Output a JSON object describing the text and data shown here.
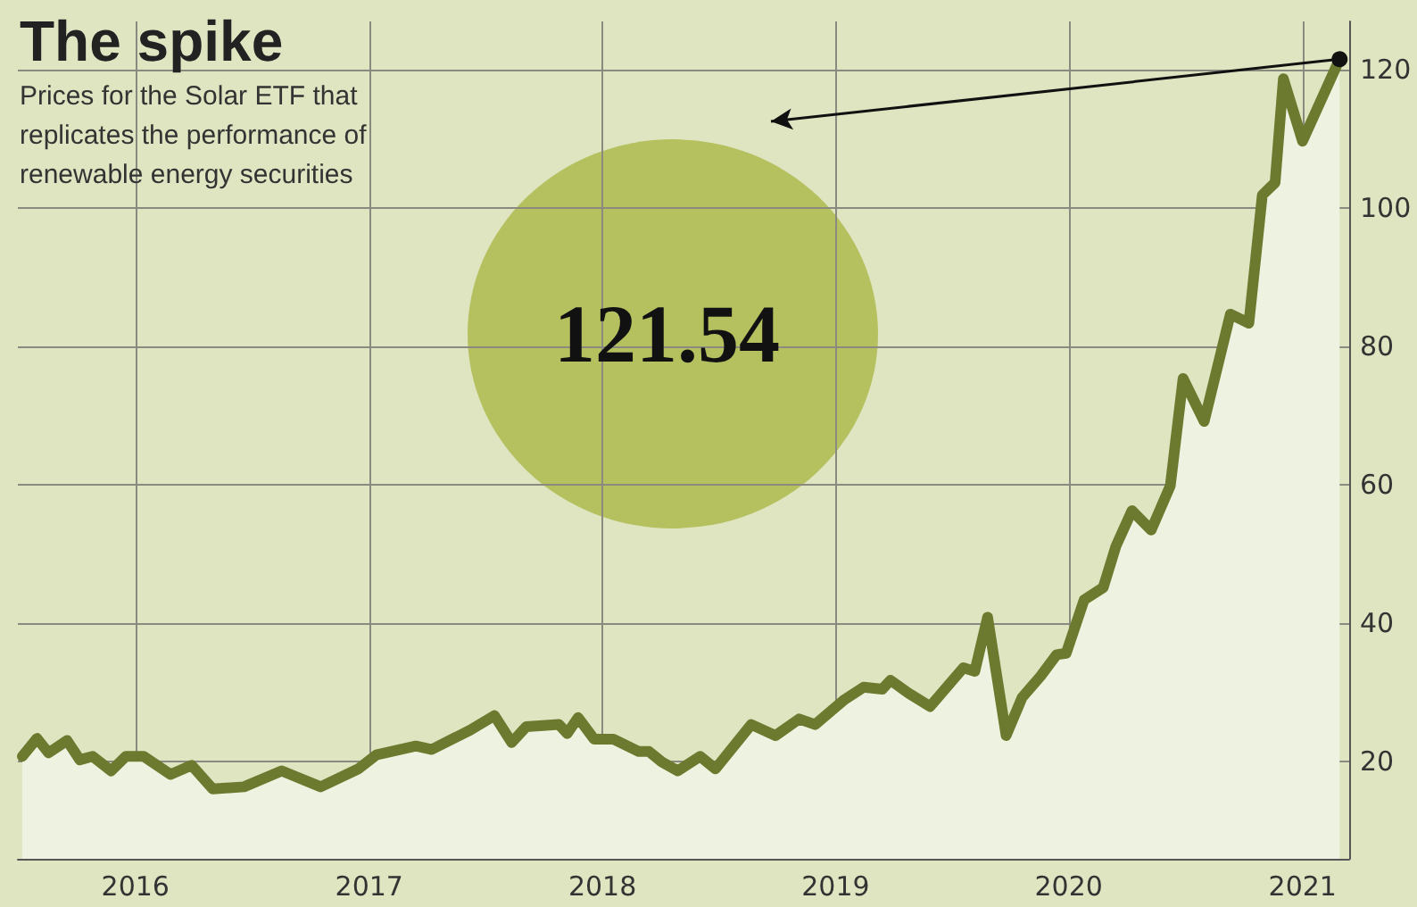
{
  "chart_data": {
    "type": "area",
    "title": "The spike",
    "subtitle": "Prices for the Solar ETF that replicates the performance of renewable energy securities",
    "x": [
      "2015-07-08",
      "2015-07-31",
      "2015-08-18",
      "2015-09-16",
      "2015-10-06",
      "2015-10-26",
      "2015-11-24",
      "2015-12-17",
      "2016-01-14",
      "2016-02-25",
      "2016-03-29",
      "2016-05-01",
      "2016-06-19",
      "2016-08-17",
      "2016-10-17",
      "2016-12-15",
      "2017-01-12",
      "2017-03-15",
      "2017-04-09",
      "2017-06-08",
      "2017-07-16",
      "2017-08-12",
      "2017-09-04",
      "2017-10-25",
      "2017-11-07",
      "2017-11-24",
      "2017-12-19",
      "2018-01-18",
      "2018-02-27",
      "2018-03-15",
      "2018-04-04",
      "2018-04-29",
      "2018-06-03",
      "2018-06-27",
      "2018-08-22",
      "2018-09-29",
      "2018-11-05",
      "2018-11-30",
      "2019-01-15",
      "2019-02-14",
      "2019-03-15",
      "2019-03-28",
      "2019-04-24",
      "2019-05-29",
      "2019-07-20",
      "2019-08-07",
      "2019-08-27",
      "2019-09-25",
      "2019-10-20",
      "2019-11-18",
      "2019-12-13",
      "2019-12-28",
      "2020-01-25",
      "2020-02-24",
      "2020-03-15",
      "2020-04-09",
      "2020-05-09",
      "2020-06-08",
      "2020-06-28",
      "2020-07-31",
      "2020-09-10",
      "2020-10-09",
      "2020-10-30",
      "2020-11-19",
      "2020-12-02",
      "2021-01-01",
      "2021-02-28"
    ],
    "series": [
      {
        "color": "#6b7a2f",
        "values": [
          20.8,
          23.4,
          21.3,
          23.1,
          20.3,
          20.8,
          18.7,
          20.8,
          20.8,
          18.2,
          19.5,
          16.1,
          16.4,
          18.7,
          16.4,
          19.0,
          21.0,
          22.3,
          21.8,
          24.6,
          26.7,
          22.8,
          25.1,
          25.4,
          24.1,
          26.4,
          23.3,
          23.3,
          21.5,
          21.5,
          20.0,
          18.7,
          20.8,
          19.0,
          25.4,
          23.8,
          26.2,
          25.4,
          29.0,
          30.8,
          30.5,
          31.8,
          30.0,
          28.0,
          33.6,
          33.1,
          40.9,
          23.8,
          29.3,
          32.4,
          35.5,
          35.7,
          43.4,
          45.2,
          51.2,
          56.3,
          53.5,
          59.9,
          75.4,
          69.2,
          84.7,
          83.4,
          101.9,
          103.7,
          118.7,
          109.7,
          121.54
        ]
      }
    ],
    "xlim": [
      "2015-07-01",
      "2021-03-15"
    ],
    "xticks": [
      "2016",
      "2017",
      "2018",
      "2019",
      "2020",
      "2021"
    ],
    "ylim": [
      6,
      127
    ],
    "yticks": [
      20,
      40,
      60,
      80,
      100,
      120
    ],
    "grid": true,
    "marker": "none",
    "line_style": "solid",
    "annotations": [
      "121.54"
    ]
  }
}
